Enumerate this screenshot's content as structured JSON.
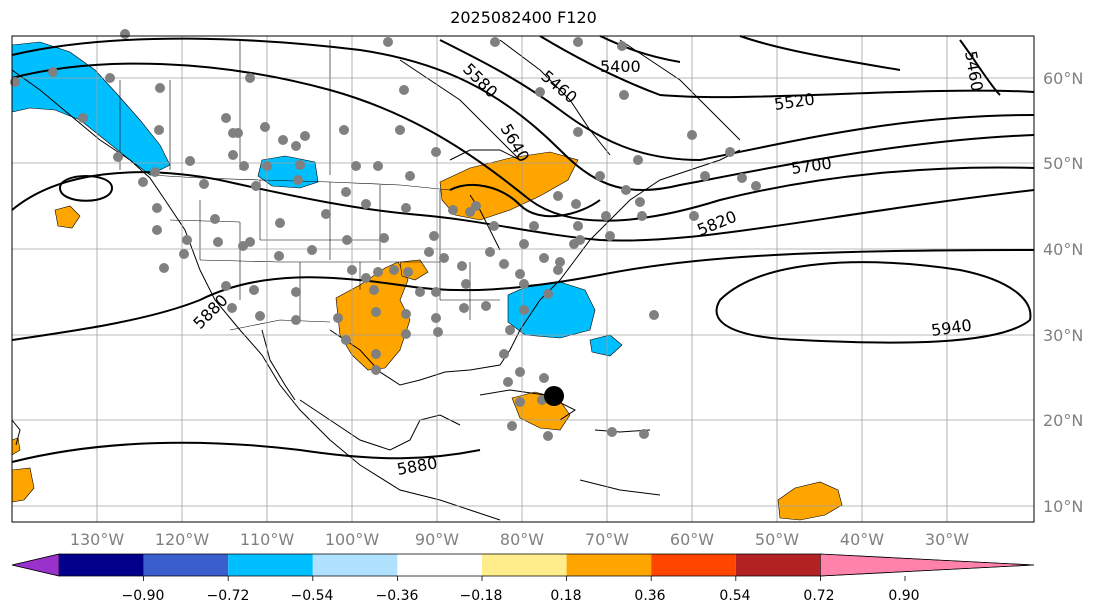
{
  "title": "2025082400 F120",
  "latitude_labels": [
    "60°N",
    "50°N",
    "40°N",
    "30°N",
    "20°N",
    "10°N"
  ],
  "longitude_labels": [
    "130°W",
    "120°W",
    "110°W",
    "100°W",
    "90°W",
    "80°W",
    "70°W",
    "60°W",
    "50°W",
    "40°W",
    "30°W"
  ],
  "contour_labels": [
    "5400",
    "5460",
    "5460",
    "5520",
    "5580",
    "5640",
    "5700",
    "5820",
    "5880",
    "5880",
    "5940"
  ],
  "colorbar": {
    "ticks": [
      "−0.90",
      "−0.72",
      "−0.54",
      "−0.36",
      "−0.18",
      "0.18",
      "0.36",
      "0.54",
      "0.72",
      "0.90"
    ],
    "colors": [
      "#9932cc",
      "#00008b",
      "#3a5fcd",
      "#00bfff",
      "#b0e2ff",
      "#ffffff",
      "#ffec8b",
      "#ffa500",
      "#ff4500",
      "#b22222",
      "#ff82ab"
    ]
  },
  "colors": {
    "positive": "#ffa500",
    "negative": "#00bfff",
    "station": "#808080",
    "storm": "#000000"
  }
}
